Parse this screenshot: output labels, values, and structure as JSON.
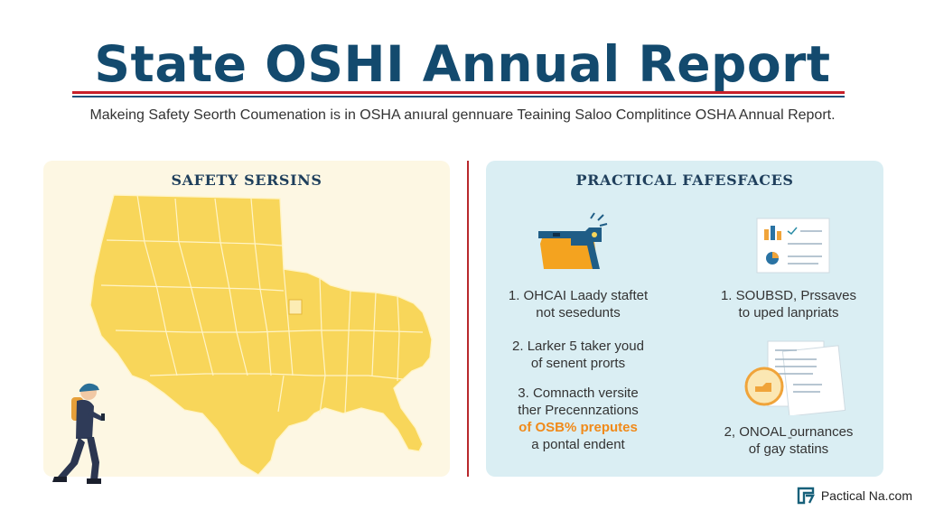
{
  "header": {
    "title": "State OSHI Annual Report",
    "subtitle": "Makeing Safety Seorth Coumenation is in OSHA anıural gennuare Teaining Saloo Complitince OSHA Annual Report."
  },
  "left_panel": {
    "title": "Safety Sersins"
  },
  "right_panel": {
    "title": "Practical Fafesfaces",
    "left_items": [
      {
        "line1": "1. OHCAI Laady staftet",
        "line2": "not sesedunts"
      },
      {
        "line1": "2. Larker 5 taker youd",
        "line2": "of senent prorts"
      },
      {
        "line1": "3. Comnacth versite",
        "line2": "ther Precennzations",
        "line3": "of OSB% preputes",
        "line4": "a pontal endent"
      }
    ],
    "right_items": [
      {
        "line1": "1. SOUBSD, Prssaves",
        "line2": "to uped lanpriats"
      },
      {
        "line1": "2, ONOAL ̱ournances",
        "line2": "of gay statins"
      }
    ]
  },
  "footer": {
    "brand": "Pactical Na.com"
  },
  "colors": {
    "title": "#134a6e",
    "red_rule": "#c8202a",
    "blue_rule": "#1c4f7a",
    "left_panel_bg": "#fdf7e3",
    "right_panel_bg": "#daeef3",
    "map_fill": "#f8d65a",
    "map_border": "#fff4c7",
    "highlight": "#f08a1a",
    "divider": "#b8282c",
    "panel_title": "#1f3f5c",
    "footer_icon": "#17607a"
  },
  "icons": {
    "right_icon_1": "safety-equipment-icon",
    "right_icon_2": "report-chart-icon",
    "right_icon_3": "documents-compliance-icon",
    "footer_icon": "brand-logo-icon",
    "person": "walking-person-illustration"
  }
}
